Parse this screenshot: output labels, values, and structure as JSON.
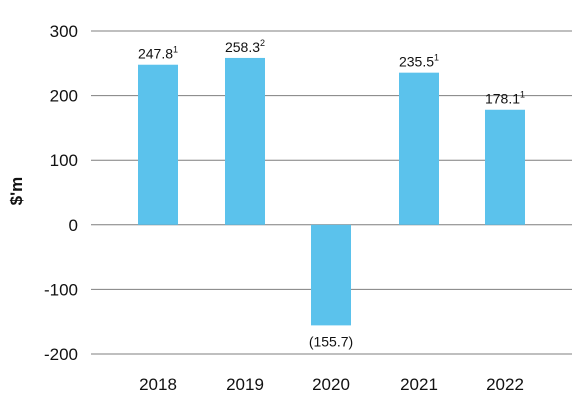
{
  "colors": {
    "bar": "#5BC2EC",
    "grid": "#7f7f7f",
    "text": "#111111",
    "background": "#ffffff"
  },
  "chart_data": {
    "type": "bar",
    "title": "",
    "xlabel": "",
    "ylabel": "$'m",
    "ylim": [
      -200,
      300
    ],
    "yticks": [
      300,
      200,
      100,
      0,
      -100,
      -200
    ],
    "ytick_labels": [
      "300",
      "200",
      "100",
      "0",
      "-100",
      "-200"
    ],
    "grid": "horizontal",
    "legend": "none",
    "categories": [
      "2018",
      "2019",
      "2020",
      "2021",
      "2022"
    ],
    "values": [
      247.8,
      258.3,
      -155.7,
      235.5,
      178.1
    ],
    "data_labels": [
      "247.8",
      "258.3",
      "(155.7)",
      "235.5",
      "178.1"
    ],
    "footnote_marks": [
      "1",
      "2",
      "",
      "1",
      "1"
    ]
  }
}
